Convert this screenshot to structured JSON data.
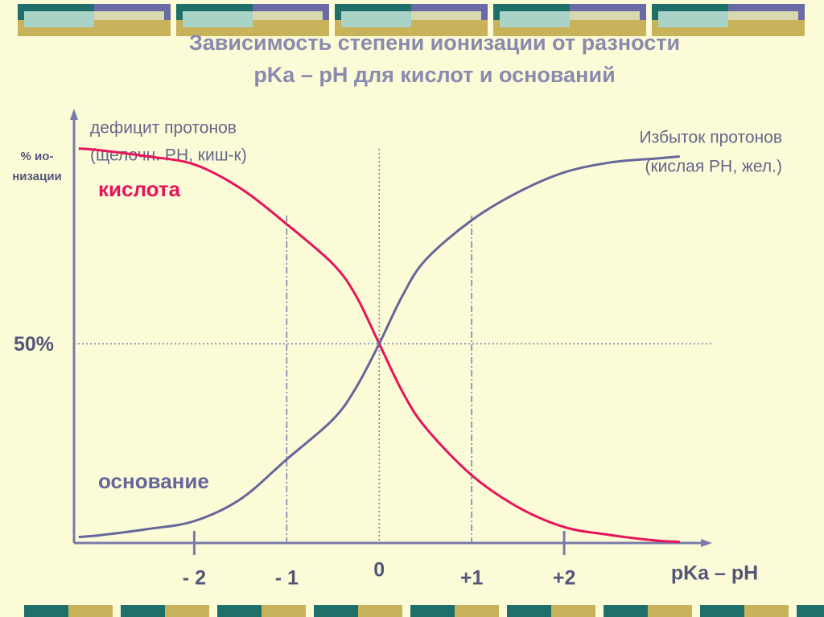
{
  "chart_data": {
    "type": "line",
    "title": [
      "Зависимость степени ионизации от разности",
      "pKa – pH  для кислот и оснований"
    ],
    "x_label": "pKa – pH",
    "y_label": [
      "% ио-",
      "низации"
    ],
    "annotations": {
      "left": [
        "дефицит протонов",
        "(щелочн. PH, киш-к)"
      ],
      "right": [
        "Избыток протонов",
        "(кислая PH, жел.)"
      ]
    },
    "x": [
      -3.25,
      -3,
      -2.5,
      -2,
      -1.5,
      -1,
      -0.5,
      -0.25,
      0,
      0.25,
      0.5,
      1,
      1.5,
      2,
      2.5,
      3,
      3.25
    ],
    "series": [
      {
        "name": "кислота",
        "color": "#e8135a",
        "values": [
          99,
          98.5,
          97,
          95,
          89,
          80,
          70,
          62,
          50,
          38,
          29,
          17,
          9,
          4,
          2,
          0.6,
          0.3
        ]
      },
      {
        "name": "основание",
        "color": "#66669a",
        "values": [
          1.5,
          2,
          3.5,
          5.5,
          11,
          21,
          31,
          39,
          50,
          62,
          71,
          81,
          88,
          93,
          95.5,
          96.5,
          97
        ]
      }
    ],
    "xlim": [
      -3.3,
      3.6
    ],
    "ylim": [
      0,
      108
    ],
    "xticks": [
      {
        "value": -2,
        "label": "- 2"
      },
      {
        "value": -1,
        "label": "- 1"
      },
      0,
      {
        "value": 1,
        "label": "+1"
      },
      {
        "value": 2,
        "label": "+2"
      }
    ],
    "xtick_lines": [
      "mark",
      "dashdot",
      "dotted",
      "dashdot",
      "mark"
    ],
    "yticks": [
      {
        "value": 50,
        "label": "50%"
      }
    ],
    "ytick_lines": [
      "dotted"
    ]
  }
}
